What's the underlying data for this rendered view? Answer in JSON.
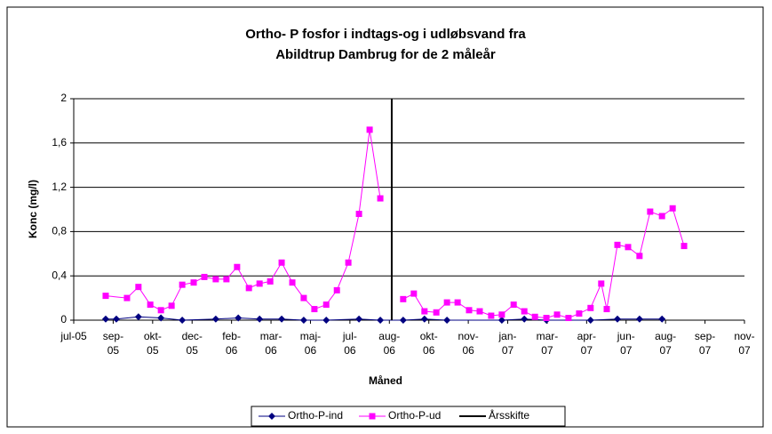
{
  "chart_data": {
    "type": "line",
    "title": "Ortho- P fosfor i indtags-og i udløbsvand fra Abildtrup Dambrug for de 2 måleår",
    "x_label": "Måned",
    "y_label": "Konc (mg/l)",
    "xlim": [
      0,
      17
    ],
    "xticks": [
      {
        "value": 0,
        "label": "jul-05"
      },
      {
        "value": 1,
        "label": "sep-05"
      },
      {
        "value": 2,
        "label": "okt-05"
      },
      {
        "value": 3,
        "label": "dec-05"
      },
      {
        "value": 4,
        "label": "feb-06"
      },
      {
        "value": 5,
        "label": "mar-06"
      },
      {
        "value": 6,
        "label": "maj-06"
      },
      {
        "value": 7,
        "label": "jul-06"
      },
      {
        "value": 8,
        "label": "aug-06"
      },
      {
        "value": 9,
        "label": "okt-06"
      },
      {
        "value": 10,
        "label": "nov-06"
      },
      {
        "value": 11,
        "label": "jan-07"
      },
      {
        "value": 12,
        "label": "mar-07"
      },
      {
        "value": 13,
        "label": "apr-07"
      },
      {
        "value": 14,
        "label": "jun-07"
      },
      {
        "value": 15,
        "label": "aug-07"
      },
      {
        "value": 16,
        "label": "sep-07"
      },
      {
        "value": 17,
        "label": "nov-07"
      }
    ],
    "ylim": [
      0,
      2
    ],
    "yticks": [
      0,
      {
        "value": 0.4,
        "label": "0,4"
      },
      {
        "value": 0.8,
        "label": "0,8"
      },
      {
        "value": 1.2,
        "label": "1,2"
      },
      {
        "value": 1.6,
        "label": "1,6"
      },
      2
    ],
    "grid": true,
    "legend": "bottom",
    "series": [
      {
        "name": "Ortho-P-ind",
        "color": "#000080",
        "marker": "diamond",
        "x": [
          0.81,
          1.08,
          1.64,
          2.21,
          2.75,
          3.6,
          4.17,
          4.71,
          5.27,
          5.83,
          6.4,
          7.23,
          7.77,
          8.35,
          8.89,
          9.46,
          10.85,
          11.42,
          11.98,
          13.1,
          13.78,
          14.34,
          14.91
        ],
        "values": [
          0.01,
          0.01,
          0.03,
          0.02,
          0,
          0.01,
          0.02,
          0.01,
          0.01,
          0,
          0,
          0.01,
          0,
          0,
          0.01,
          0,
          0,
          0.01,
          0,
          0,
          0.01,
          0.01,
          0.01
        ]
      },
      {
        "name": "Ortho-P-ud",
        "color": "#ff00ff",
        "marker": "square",
        "x": [
          0.81,
          1.35,
          1.64,
          1.94,
          2.21,
          2.48,
          2.75,
          3.04,
          3.31,
          3.6,
          3.87,
          4.14,
          4.44,
          4.71,
          4.98,
          5.27,
          5.54,
          5.83,
          6.1,
          6.4,
          6.67,
          6.96,
          7.23,
          7.5,
          7.77,
          null,
          8.35,
          8.62,
          8.89,
          9.19,
          9.46,
          9.73,
          10.02,
          10.29,
          10.58,
          10.85,
          11.15,
          11.42,
          11.69,
          11.98,
          12.25,
          12.54,
          12.81,
          13.1,
          13.37,
          13.51,
          13.78,
          14.05,
          14.34,
          14.61,
          14.91,
          15.18,
          15.47
        ],
        "values": [
          0.22,
          0.2,
          0.3,
          0.14,
          0.09,
          0.13,
          0.32,
          0.34,
          0.39,
          0.37,
          0.37,
          0.48,
          0.29,
          0.33,
          0.35,
          0.52,
          0.34,
          0.2,
          0.1,
          0.14,
          0.27,
          0.52,
          0.96,
          1.72,
          1.1,
          null,
          0.19,
          0.24,
          0.08,
          0.07,
          0.16,
          0.16,
          0.09,
          0.08,
          0.04,
          0.05,
          0.14,
          0.08,
          0.03,
          0.02,
          0.05,
          0.02,
          0.06,
          0.11,
          0.33,
          0.1,
          0.68,
          0.66,
          0.58,
          0.98,
          0.94,
          1.01,
          0.67
        ]
      },
      {
        "name": "Årsskifte",
        "color": "#000000",
        "marker": "none",
        "x": [
          8.06,
          8.06
        ],
        "values": [
          0,
          2
        ]
      }
    ]
  }
}
